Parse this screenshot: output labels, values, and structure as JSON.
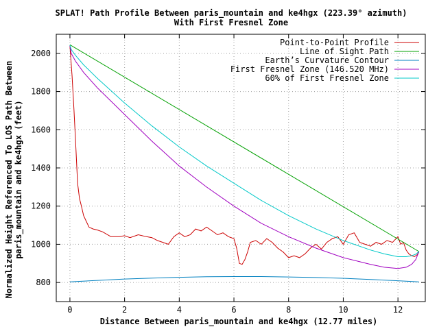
{
  "chart_data": {
    "type": "line",
    "title": "SPLAT! Path Profile Between paris_mountain and ke4hgx (223.39° azimuth)",
    "subtitle": "With First Fresnel Zone",
    "xlabel": "Distance Between paris_mountain and ke4hgx (12.77 miles)",
    "ylabel_line1": "Normalized Height Referenced To LOS Path Between",
    "ylabel_line2": "paris_mountain and ke4hgx (feet)",
    "xlim": [
      -0.5,
      13.0
    ],
    "ylim": [
      700,
      2100
    ],
    "xticks": [
      0,
      2,
      4,
      6,
      8,
      10,
      12
    ],
    "yticks": [
      800,
      1000,
      1200,
      1400,
      1600,
      1800,
      2000
    ],
    "grid": true,
    "legend_position": "top-right",
    "series": [
      {
        "name": "Point-to-Point Profile",
        "color": "#cc0000",
        "x": [
          0.0,
          0.03,
          0.08,
          0.15,
          0.22,
          0.28,
          0.35,
          0.42,
          0.5,
          0.6,
          0.7,
          0.85,
          1.0,
          1.2,
          1.5,
          1.8,
          2.0,
          2.2,
          2.5,
          2.8,
          3.0,
          3.2,
          3.4,
          3.6,
          3.8,
          4.0,
          4.2,
          4.4,
          4.6,
          4.8,
          5.0,
          5.2,
          5.4,
          5.6,
          5.8,
          6.0,
          6.1,
          6.2,
          6.3,
          6.4,
          6.5,
          6.6,
          6.8,
          7.0,
          7.2,
          7.4,
          7.6,
          7.8,
          8.0,
          8.2,
          8.4,
          8.6,
          8.8,
          9.0,
          9.2,
          9.4,
          9.6,
          9.8,
          10.0,
          10.2,
          10.4,
          10.6,
          10.8,
          11.0,
          11.2,
          11.4,
          11.6,
          11.8,
          12.0,
          12.1,
          12.2,
          12.3,
          12.4,
          12.5,
          12.6,
          12.7,
          12.77
        ],
        "y": [
          2040,
          1980,
          1880,
          1700,
          1500,
          1320,
          1240,
          1200,
          1150,
          1120,
          1090,
          1080,
          1075,
          1065,
          1040,
          1040,
          1045,
          1035,
          1050,
          1040,
          1035,
          1020,
          1010,
          1000,
          1040,
          1060,
          1040,
          1050,
          1080,
          1070,
          1090,
          1070,
          1050,
          1060,
          1040,
          1030,
          980,
          900,
          895,
          920,
          960,
          1010,
          1020,
          1000,
          1030,
          1010,
          980,
          960,
          930,
          940,
          930,
          950,
          980,
          1000,
          975,
          1010,
          1030,
          1040,
          1000,
          1050,
          1060,
          1010,
          1000,
          990,
          1010,
          1000,
          1020,
          1010,
          1040,
          1000,
          1010,
          970,
          950,
          940,
          935,
          945,
          960
        ]
      },
      {
        "name": "Line of Sight Path",
        "color": "#00a000",
        "x": [
          0.0,
          12.77
        ],
        "y": [
          2045,
          962
        ]
      },
      {
        "name": "Earth’s Curvature Contour",
        "color": "#0080c0",
        "x": [
          0.0,
          1.0,
          2.0,
          3.0,
          4.0,
          5.0,
          6.0,
          6.385,
          7.0,
          8.0,
          9.0,
          10.0,
          11.0,
          12.0,
          12.77
        ],
        "y": [
          803,
          811,
          818,
          823,
          827,
          830,
          831,
          831,
          831,
          829,
          826,
          822,
          816,
          809,
          803
        ]
      },
      {
        "name": "First Fresnel Zone (146.520 MHz)",
        "color": "#a000c0",
        "x": [
          0.0,
          0.05,
          0.2,
          0.5,
          1.0,
          2.0,
          3.0,
          4.0,
          5.0,
          6.0,
          7.0,
          8.0,
          9.0,
          10.0,
          11.0,
          11.5,
          12.0,
          12.3,
          12.5,
          12.65,
          12.77
        ],
        "y": [
          2040,
          2000,
          1960,
          1900,
          1820,
          1680,
          1540,
          1410,
          1300,
          1200,
          1110,
          1040,
          980,
          930,
          895,
          880,
          873,
          880,
          895,
          920,
          962
        ]
      },
      {
        "name": "60% of First Fresnel Zone",
        "color": "#00c8c8",
        "x": [
          0.0,
          0.05,
          0.2,
          0.5,
          1.0,
          2.0,
          3.0,
          4.0,
          5.0,
          6.0,
          7.0,
          8.0,
          9.0,
          10.0,
          11.0,
          11.5,
          12.0,
          12.3,
          12.5,
          12.65,
          12.77
        ],
        "y": [
          2043,
          2020,
          1990,
          1940,
          1870,
          1740,
          1620,
          1510,
          1410,
          1320,
          1230,
          1150,
          1080,
          1020,
          970,
          950,
          935,
          935,
          940,
          948,
          962
        ]
      }
    ]
  }
}
